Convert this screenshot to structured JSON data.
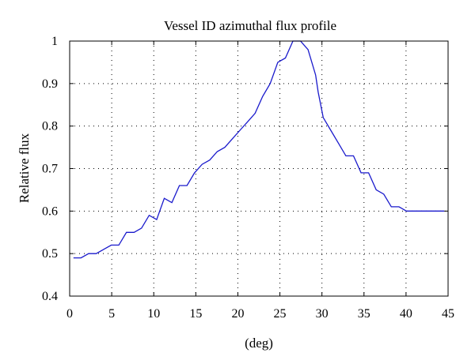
{
  "chart_data": {
    "type": "line",
    "title": "Vessel ID azimuthal flux profile",
    "xlabel": "(deg)",
    "ylabel": "Relative flux",
    "xlim": [
      0,
      45
    ],
    "ylim": [
      0.4,
      1.0
    ],
    "xticks": [
      0,
      5,
      10,
      15,
      20,
      25,
      30,
      35,
      40,
      45
    ],
    "yticks": [
      0.4,
      0.5,
      0.6,
      0.7,
      0.8,
      0.9,
      1.0
    ],
    "xtick_labels": [
      "0",
      "5",
      "10",
      "15",
      "20",
      "25",
      "30",
      "35",
      "40",
      "45"
    ],
    "ytick_labels": [
      "0.4",
      "0.5",
      "0.6",
      "0.7",
      "0.8",
      "0.9",
      "1"
    ],
    "grid": true,
    "series": [
      {
        "color": "#1a1acc",
        "x": [
          0.45,
          1.35,
          2.25,
          3.15,
          4.05,
          4.95,
          5.85,
          6.75,
          7.65,
          8.55,
          9.45,
          10.35,
          11.25,
          12.15,
          13.05,
          13.95,
          14.85,
          15.75,
          16.65,
          17.55,
          18.45,
          19.35,
          20.25,
          21.15,
          22.05,
          22.95,
          23.85,
          24.75,
          25.65,
          26.55,
          27.45,
          28.35,
          29.25,
          29.55,
          30.15,
          31.05,
          31.95,
          32.85,
          33.75,
          34.65,
          35.55,
          36.45,
          37.35,
          38.25,
          39.15,
          40.05,
          40.95,
          41.85,
          42.75,
          43.65,
          44.55
        ],
        "y": [
          0.49,
          0.49,
          0.5,
          0.5,
          0.51,
          0.52,
          0.52,
          0.55,
          0.55,
          0.56,
          0.59,
          0.58,
          0.63,
          0.62,
          0.66,
          0.66,
          0.69,
          0.71,
          0.72,
          0.74,
          0.75,
          0.77,
          0.79,
          0.81,
          0.83,
          0.87,
          0.9,
          0.95,
          0.96,
          1.0,
          1.0,
          0.98,
          0.92,
          0.88,
          0.82,
          0.79,
          0.76,
          0.73,
          0.73,
          0.69,
          0.69,
          0.65,
          0.64,
          0.61,
          0.61,
          0.6,
          0.6,
          0.6,
          0.6,
          0.6,
          0.6
        ]
      }
    ]
  }
}
